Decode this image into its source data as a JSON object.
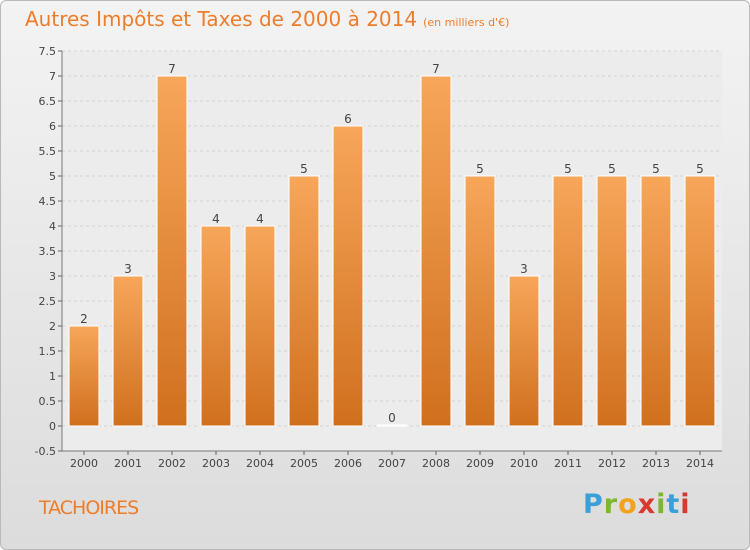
{
  "header": {
    "title": "Autres Impôts et Taxes de 2000 à 2014",
    "subtitle": "(en milliers d'€)"
  },
  "commune": "TACHOIRES",
  "logo": {
    "text": "Proxiti",
    "letters": [
      "P",
      "r",
      "o",
      "x",
      "i",
      "t",
      "i"
    ],
    "colors": [
      "#3aa0d8",
      "#7cb82f",
      "#f2a31b",
      "#d6392f",
      "#7cb82f",
      "#3aa0d8",
      "#d6392f"
    ]
  },
  "colors": {
    "bar_light": "#f7a65a",
    "bar_dark": "#d0701e",
    "title": "#ee7d2a"
  },
  "chart_data": {
    "type": "bar",
    "categories": [
      "2000",
      "2001",
      "2002",
      "2003",
      "2004",
      "2005",
      "2006",
      "2007",
      "2008",
      "2009",
      "2010",
      "2011",
      "2012",
      "2013",
      "2014"
    ],
    "values": [
      2,
      3,
      7,
      4,
      4,
      5,
      6,
      0,
      7,
      5,
      3,
      5,
      5,
      5,
      5
    ],
    "value_labels": [
      "2",
      "3",
      "7",
      "4",
      "4",
      "5",
      "6",
      "0",
      "7",
      "5",
      "3",
      "5",
      "5",
      "5",
      "5"
    ],
    "yticks": [
      -0.5,
      0,
      0.5,
      1,
      1.5,
      2,
      2.5,
      3,
      3.5,
      4,
      4.5,
      5,
      5.5,
      6,
      6.5,
      7,
      7.5
    ],
    "ytick_labels": [
      "-0.5",
      "0",
      "0.5",
      "1",
      "1.5",
      "2",
      "2.5",
      "3",
      "3.5",
      "4",
      "4.5",
      "5",
      "5.5",
      "6",
      "6.5",
      "7",
      "7.5"
    ],
    "ylim": [
      -0.5,
      7.5
    ],
    "grid": true,
    "title": "Autres Impôts et Taxes de 2000 à 2014",
    "xlabel": "",
    "ylabel": ""
  }
}
